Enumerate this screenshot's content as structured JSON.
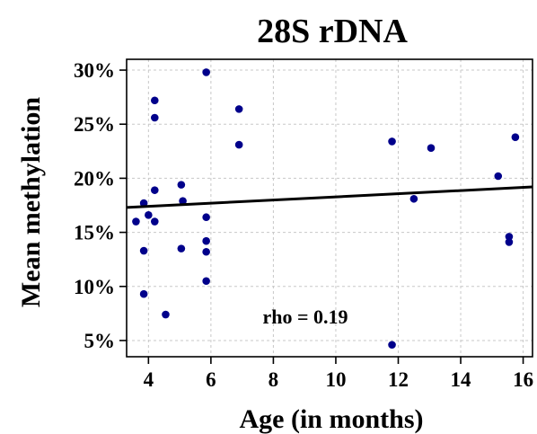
{
  "chart_data": {
    "type": "scatter",
    "title": "28S rDNA",
    "xlabel": "Age  (in months)",
    "ylabel": "Mean methylation",
    "xlim": [
      3.3,
      16.3
    ],
    "ylim": [
      3.5,
      31.0
    ],
    "xticks": [
      4,
      6,
      8,
      10,
      12,
      14,
      16
    ],
    "yticks": [
      5,
      10,
      15,
      20,
      25,
      30
    ],
    "ytick_labels": [
      "5%",
      "10%",
      "15%",
      "20%",
      "25%",
      "30%"
    ],
    "grid": true,
    "point_color": "#00008b",
    "points": [
      {
        "x": 3.6,
        "y": 16.0
      },
      {
        "x": 3.85,
        "y": 17.7
      },
      {
        "x": 3.85,
        "y": 13.3
      },
      {
        "x": 3.85,
        "y": 9.3
      },
      {
        "x": 4.0,
        "y": 16.6
      },
      {
        "x": 4.2,
        "y": 27.2
      },
      {
        "x": 4.2,
        "y": 25.6
      },
      {
        "x": 4.2,
        "y": 18.9
      },
      {
        "x": 4.2,
        "y": 16.0
      },
      {
        "x": 4.55,
        "y": 7.4
      },
      {
        "x": 5.05,
        "y": 19.4
      },
      {
        "x": 5.1,
        "y": 17.9
      },
      {
        "x": 5.05,
        "y": 13.5
      },
      {
        "x": 5.85,
        "y": 29.8
      },
      {
        "x": 5.85,
        "y": 16.4
      },
      {
        "x": 5.85,
        "y": 14.2
      },
      {
        "x": 5.85,
        "y": 13.2
      },
      {
        "x": 5.85,
        "y": 10.5
      },
      {
        "x": 6.9,
        "y": 26.4
      },
      {
        "x": 6.9,
        "y": 23.1
      },
      {
        "x": 11.8,
        "y": 23.4
      },
      {
        "x": 11.8,
        "y": 4.6
      },
      {
        "x": 12.5,
        "y": 18.1
      },
      {
        "x": 13.05,
        "y": 22.8
      },
      {
        "x": 15.2,
        "y": 20.2
      },
      {
        "x": 15.55,
        "y": 14.6
      },
      {
        "x": 15.55,
        "y": 14.1
      },
      {
        "x": 15.75,
        "y": 23.8
      }
    ],
    "fit_line": {
      "x": [
        3.3,
        16.3
      ],
      "y": [
        17.3,
        19.2
      ]
    },
    "annotation": "rho = 0.19"
  }
}
